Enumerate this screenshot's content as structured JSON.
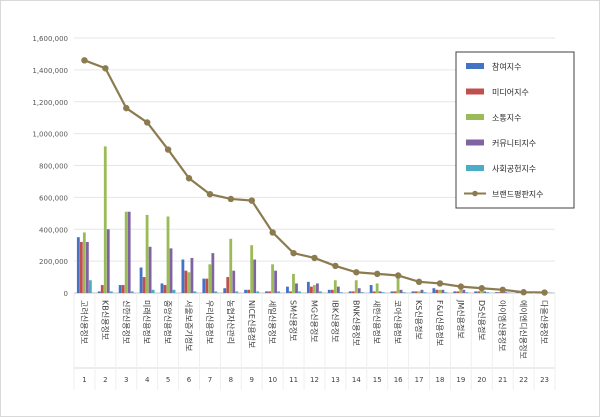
{
  "chart_data": {
    "type": "bar",
    "categories": [
      "고려신용정보",
      "KB신용정보",
      "신한신용정보",
      "미래신용정보",
      "중앙신용정보",
      "서울보증기정보",
      "우리신용정보",
      "농협자산관리",
      "NICE신용정보",
      "세일신용정보",
      "SM신용정보",
      "MG신용정보",
      "IBK신용정보",
      "BNK신용정보",
      "새한신용정보",
      "코아신용정보",
      "KS신용정보",
      "F&U신용정보",
      "JM신용정보",
      "DS신용정보",
      "아이엠신용정보",
      "에이엔디신용정보",
      "다올신용정보"
    ],
    "index_labels": [
      "1",
      "2",
      "3",
      "4",
      "5",
      "6",
      "7",
      "8",
      "9",
      "10",
      "11",
      "12",
      "13",
      "14",
      "15",
      "16",
      "17",
      "18",
      "19",
      "20",
      "21",
      "22",
      "23"
    ],
    "ylim": [
      0,
      1600000
    ],
    "yticks": [
      "0",
      "200,000",
      "400,000",
      "600,000",
      "800,000",
      "1,000,000",
      "1,200,000",
      "1,400,000",
      "1,600,000"
    ],
    "ytick_values": [
      0,
      200000,
      400000,
      600000,
      800000,
      1000000,
      1200000,
      1400000,
      1600000
    ],
    "series": [
      {
        "name": "참여지수",
        "color": "#4472C4",
        "values": [
          350000,
          10000,
          50000,
          160000,
          60000,
          210000,
          90000,
          30000,
          20000,
          10000,
          40000,
          70000,
          20000,
          10000,
          50000,
          10000,
          10000,
          30000,
          10000,
          10000,
          5000,
          3000,
          3000
        ]
      },
      {
        "name": "미디어지수",
        "color": "#C0504D",
        "values": [
          320000,
          50000,
          50000,
          100000,
          50000,
          140000,
          90000,
          100000,
          20000,
          10000,
          10000,
          40000,
          20000,
          10000,
          10000,
          10000,
          10000,
          20000,
          10000,
          10000,
          5000,
          3000,
          3000
        ]
      },
      {
        "name": "소통지수",
        "color": "#9BBB59",
        "values": [
          380000,
          920000,
          510000,
          490000,
          480000,
          130000,
          180000,
          340000,
          300000,
          180000,
          120000,
          50000,
          80000,
          80000,
          60000,
          110000,
          10000,
          20000,
          30000,
          40000,
          10000,
          5000,
          5000
        ]
      },
      {
        "name": "커뮤니티지수",
        "color": "#8064A2",
        "values": [
          320000,
          400000,
          510000,
          290000,
          280000,
          220000,
          250000,
          140000,
          210000,
          140000,
          60000,
          60000,
          40000,
          30000,
          10000,
          20000,
          20000,
          20000,
          20000,
          10000,
          5000,
          3000,
          3000
        ]
      },
      {
        "name": "사회공헌지수",
        "color": "#4BACC6",
        "values": [
          80000,
          10000,
          10000,
          20000,
          20000,
          10000,
          10000,
          10000,
          10000,
          10000,
          10000,
          10000,
          5000,
          5000,
          5000,
          5000,
          5000,
          5000,
          5000,
          5000,
          3000,
          2000,
          2000
        ]
      },
      {
        "name": "브랜드평판지수",
        "color": "#8C7B4F",
        "type": "line",
        "values": [
          1460000,
          1410000,
          1160000,
          1070000,
          900000,
          720000,
          620000,
          590000,
          580000,
          380000,
          250000,
          220000,
          170000,
          130000,
          120000,
          110000,
          70000,
          60000,
          40000,
          30000,
          20000,
          5000,
          3000
        ]
      }
    ],
    "legend_position": "right"
  }
}
